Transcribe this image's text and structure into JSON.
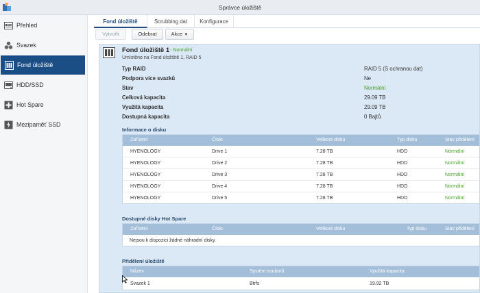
{
  "window": {
    "title": "Správce úložiště"
  },
  "sidebar": {
    "items": [
      {
        "label": "Přehled",
        "icon": "overview-icon"
      },
      {
        "label": "Svazek",
        "icon": "volume-icon"
      },
      {
        "label": "Fond úložiště",
        "icon": "storage-pool-icon",
        "active": true
      },
      {
        "label": "HDD/SSD",
        "icon": "disk-icon"
      },
      {
        "label": "Hot Spare",
        "icon": "hot-spare-icon"
      },
      {
        "label": "Mezipaměť SSD",
        "icon": "ssd-cache-icon"
      }
    ]
  },
  "tabs": [
    {
      "label": "Fond úložiště",
      "active": true
    },
    {
      "label": "Scrubbing dat"
    },
    {
      "label": "Konfigurace"
    }
  ],
  "toolbar": {
    "create_label": "Vytvořit",
    "remove_label": "Odebrat",
    "action_label": "Akce"
  },
  "pool": {
    "name": "Fond úložiště 1",
    "status_suffix": "- Normální",
    "location": "Umístěno na Fond úložiště 1, RAID 5",
    "properties": [
      {
        "label": "Typ RAID",
        "value": "RAID 5 (S ochranou dat)"
      },
      {
        "label": "Podpora více svazků",
        "value": "Ne"
      },
      {
        "label": "Stav",
        "value": "Normální",
        "status": "ok"
      },
      {
        "label": "Celková kapacita",
        "value": "29.09 TB"
      },
      {
        "label": "Využitá kapacita",
        "value": "29.09 TB"
      },
      {
        "label": "Dostupná kapacita",
        "value": "0 Bajtů"
      }
    ]
  },
  "disk_info": {
    "title": "Informace o disku",
    "columns": [
      "Zařízení",
      "Číslo",
      "Velikost disku",
      "Typ disku",
      "Stav přidělení"
    ],
    "rows": [
      [
        "HYENOLOGY",
        "Drive 1",
        "7.28 TB",
        "HDD",
        "Normální"
      ],
      [
        "HYENOLOGY",
        "Drive 2",
        "7.28 TB",
        "HDD",
        "Normální"
      ],
      [
        "HYENOLOGY",
        "Drive 3",
        "7.28 TB",
        "HDD",
        "Normální"
      ],
      [
        "HYENOLOGY",
        "Drive 4",
        "7.28 TB",
        "HDD",
        "Normální"
      ],
      [
        "HYENOLOGY",
        "Drive 5",
        "7.28 TB",
        "HDD",
        "Normální"
      ]
    ]
  },
  "hot_spare": {
    "title": "Dostupné disky Hot Spare",
    "columns": [
      "Zařízení",
      "Číslo",
      "Velikost disku",
      "Typ disku",
      "Stav přidělení"
    ],
    "empty_text": "Nejsou k dispozici žádné náhradní disky."
  },
  "allocation": {
    "title": "Přidělení úložiště",
    "columns": [
      "Název",
      "Systém souborů",
      "Využitá kapacita"
    ],
    "rows": [
      [
        "Svazek 1",
        "Btrfs",
        "19.92 TB"
      ]
    ]
  },
  "colors": {
    "accent": "#1c4e86",
    "status_ok": "#4aa02c",
    "grid_header": "#a3bed9",
    "panel": "#dbe8f5"
  }
}
